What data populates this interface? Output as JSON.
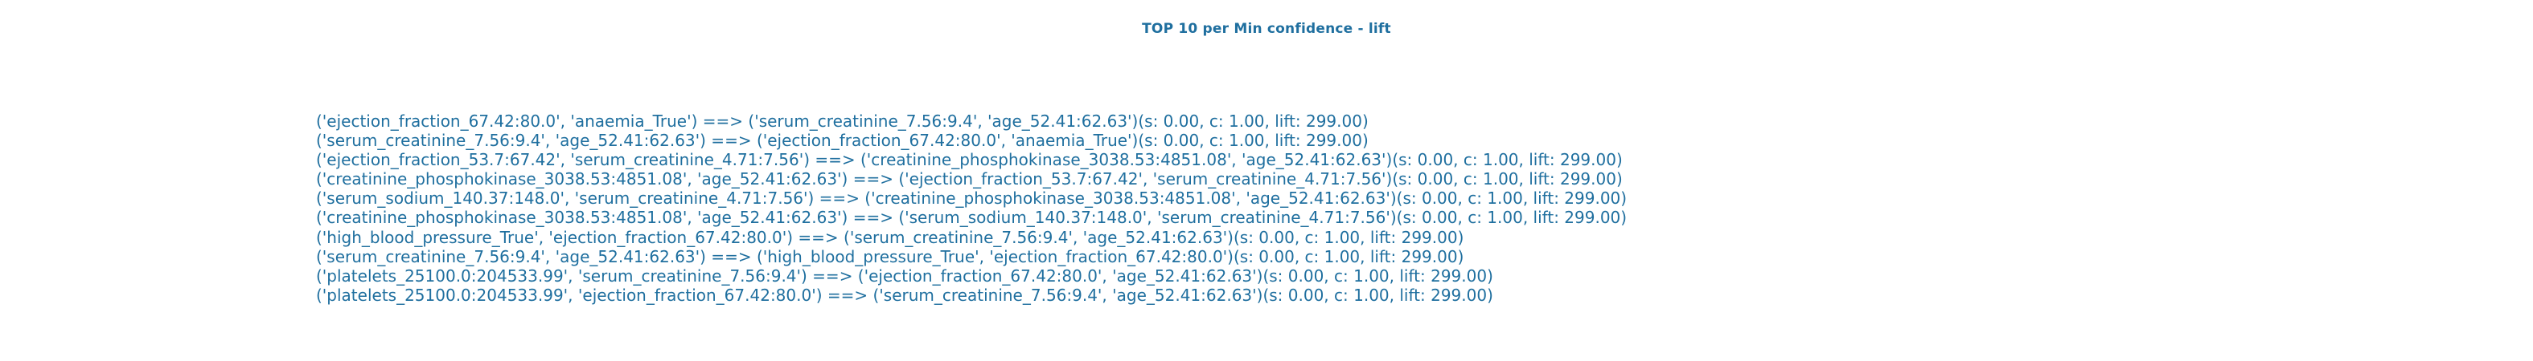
{
  "title": "TOP 10 per Min confidence - lift",
  "text_color": "#1f6f9f",
  "rules": [
    "('ejection_fraction_67.42:80.0', 'anaemia_True') ==> ('serum_creatinine_7.56:9.4', 'age_52.41:62.63')(s: 0.00, c: 1.00, lift: 299.00)",
    "('serum_creatinine_7.56:9.4', 'age_52.41:62.63') ==> ('ejection_fraction_67.42:80.0', 'anaemia_True')(s: 0.00, c: 1.00, lift: 299.00)",
    "('ejection_fraction_53.7:67.42', 'serum_creatinine_4.71:7.56') ==> ('creatinine_phosphokinase_3038.53:4851.08', 'age_52.41:62.63')(s: 0.00, c: 1.00, lift: 299.00)",
    "('creatinine_phosphokinase_3038.53:4851.08', 'age_52.41:62.63') ==> ('ejection_fraction_53.7:67.42', 'serum_creatinine_4.71:7.56')(s: 0.00, c: 1.00, lift: 299.00)",
    "('serum_sodium_140.37:148.0', 'serum_creatinine_4.71:7.56') ==> ('creatinine_phosphokinase_3038.53:4851.08', 'age_52.41:62.63')(s: 0.00, c: 1.00, lift: 299.00)",
    "('creatinine_phosphokinase_3038.53:4851.08', 'age_52.41:62.63') ==> ('serum_sodium_140.37:148.0', 'serum_creatinine_4.71:7.56')(s: 0.00, c: 1.00, lift: 299.00)",
    "('high_blood_pressure_True', 'ejection_fraction_67.42:80.0') ==> ('serum_creatinine_7.56:9.4', 'age_52.41:62.63')(s: 0.00, c: 1.00, lift: 299.00)",
    "('serum_creatinine_7.56:9.4', 'age_52.41:62.63') ==> ('high_blood_pressure_True', 'ejection_fraction_67.42:80.0')(s: 0.00, c: 1.00, lift: 299.00)",
    "('platelets_25100.0:204533.99', 'serum_creatinine_7.56:9.4') ==> ('ejection_fraction_67.42:80.0', 'age_52.41:62.63')(s: 0.00, c: 1.00, lift: 299.00)",
    "('platelets_25100.0:204533.99', 'ejection_fraction_67.42:80.0') ==> ('serum_creatinine_7.56:9.4', 'age_52.41:62.63')(s: 0.00, c: 1.00, lift: 299.00)"
  ]
}
